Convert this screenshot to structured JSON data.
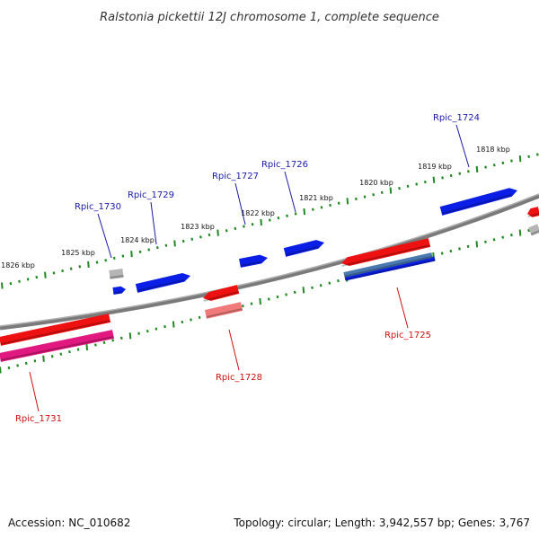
{
  "title": "Ralstonia pickettii 12J chromosome 1, complete sequence",
  "footer": {
    "accession": "Accession: NC_010682",
    "summary": "Topology: circular; Length: 3,942,557 bp; Genes: 3,767"
  },
  "colors": {
    "backbone": "#7a7a7a",
    "forward_gene": "#0a1ee6",
    "reverse_gene": "#ee1111",
    "reverse_gene_light": "#f07a7a",
    "pseudo_gene": "#b5b5b5",
    "rna_gene": "#e0187f",
    "steel_gene": "#4a78b0",
    "tick": "#228822",
    "label_forward": "#1a1aa8",
    "label_reverse": "#cc1111"
  },
  "scale_upper": {
    "tick_labels": [
      "1826 kbp",
      "1825 kbp",
      "1824 kbp",
      "1823 kbp",
      "1822 kbp",
      "1821 kbp",
      "1820 kbp",
      "1819 kbp",
      "1818 kbp"
    ]
  },
  "gene_labels": {
    "forward": [
      "Rpic_1730",
      "Rpic_1729",
      "Rpic_1727",
      "Rpic_1726",
      "Rpic_1724"
    ],
    "reverse": [
      "Rpic_1731",
      "Rpic_1728",
      "Rpic_1725"
    ]
  }
}
